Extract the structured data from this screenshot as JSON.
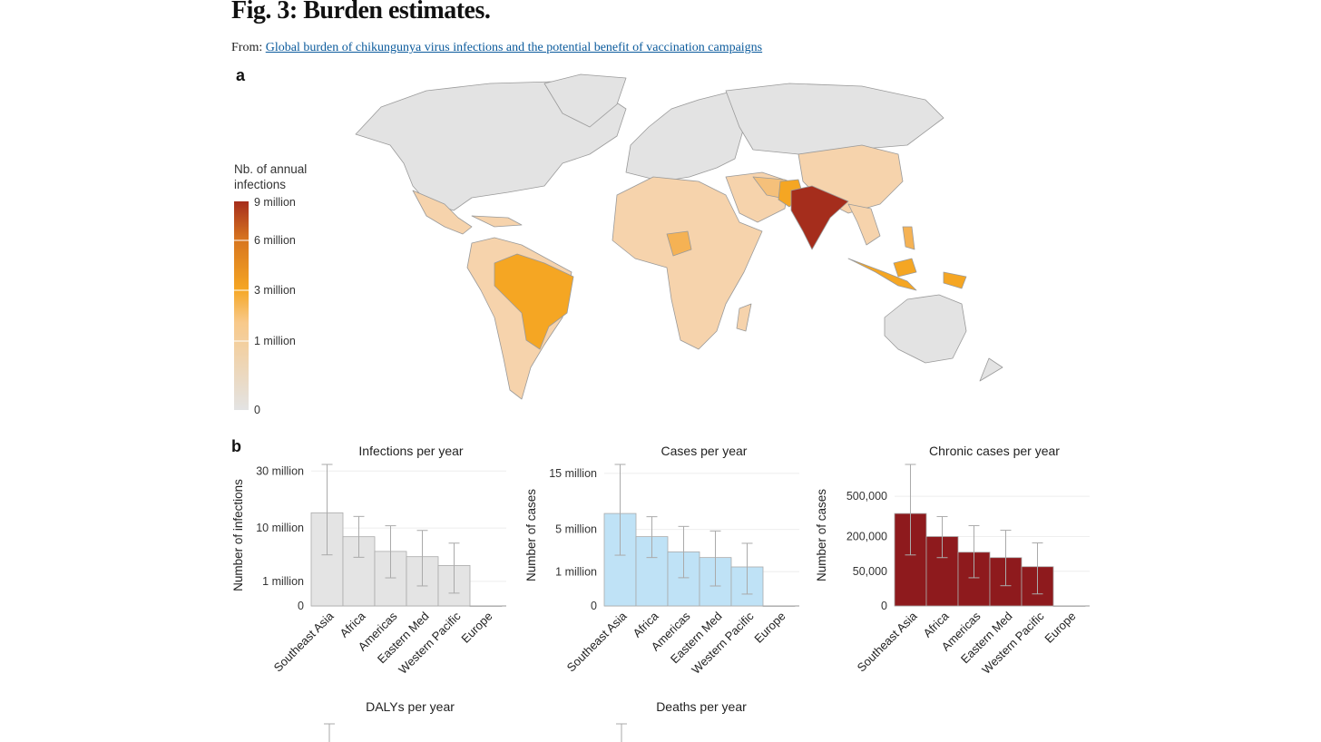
{
  "header": {
    "title": "Fig. 3: Burden estimates.",
    "from_label": "From:",
    "source_link": "Global burden of chikungunya virus infections and the potential benefit of vaccination campaigns"
  },
  "panel_a": {
    "label": "a",
    "legend": {
      "title_line1": "Nb. of annual",
      "title_line2": "infections",
      "ticks": [
        "9 million",
        "6 million",
        "3 million",
        "1 million",
        "0"
      ]
    },
    "colors": {
      "zero": "#e3e3e3",
      "low": "#f6d3ac",
      "mid": "#f5a623",
      "high": "#a52d1c",
      "border": "#9a9a9a"
    }
  },
  "panel_b": {
    "label": "b",
    "bottom_titles": [
      "DALYs per year",
      "Deaths per year"
    ]
  },
  "chart_data": [
    {
      "type": "bar",
      "title": "Infections per year",
      "ylabel": "Number of infections",
      "yscale": "sqrt",
      "yticks": [
        0,
        1000000,
        10000000,
        30000000
      ],
      "ytick_labels": [
        "0",
        "1 million",
        "10 million",
        "30 million"
      ],
      "grid": true,
      "color": "#e4e4e4",
      "categories": [
        "Southeast Asia",
        "Africa",
        "Americas",
        "Eastern Med",
        "Western Pacific",
        "Europe"
      ],
      "values": [
        14300000,
        7900000,
        4900000,
        4000000,
        2700000,
        0
      ],
      "error_low": [
        4300000,
        3900000,
        1300000,
        660000,
        270000,
        0
      ],
      "error_high": [
        33000000,
        13200000,
        10600000,
        9400000,
        6500000,
        0
      ]
    },
    {
      "type": "bar",
      "title": "Cases per year",
      "ylabel": "Number of cases",
      "yscale": "sqrt",
      "yticks": [
        0,
        1000000,
        5000000,
        15000000
      ],
      "ytick_labels": [
        "0",
        "1 million",
        "5 million",
        "15 million"
      ],
      "grid": true,
      "color": "#bfe2f6",
      "categories": [
        "Southeast Asia",
        "Africa",
        "Americas",
        "Eastern Med",
        "Western Pacific",
        "Europe"
      ],
      "values": [
        7300000,
        4100000,
        2500000,
        2000000,
        1300000,
        0
      ],
      "error_low": [
        2200000,
        2000000,
        680000,
        340000,
        120000,
        0
      ],
      "error_high": [
        17100000,
        6800000,
        5400000,
        4800000,
        3350000,
        0
      ]
    },
    {
      "type": "bar",
      "title": "Chronic cases per year",
      "ylabel": "Number of cases",
      "yscale": "sqrt",
      "yticks": [
        0,
        50000,
        200000,
        500000
      ],
      "ytick_labels": [
        "0",
        "50,000",
        "200,000",
        "500,000"
      ],
      "grid": true,
      "color": "#8e1a1d",
      "categories": [
        "Southeast Asia",
        "Africa",
        "Americas",
        "Eastern Med",
        "Western Pacific",
        "Europe"
      ],
      "values": [
        355000,
        200000,
        120000,
        97000,
        64000,
        0
      ],
      "error_low": [
        108000,
        97000,
        33000,
        17000,
        6000,
        0
      ],
      "error_high": [
        832000,
        332000,
        268000,
        238000,
        165000,
        0
      ]
    }
  ]
}
